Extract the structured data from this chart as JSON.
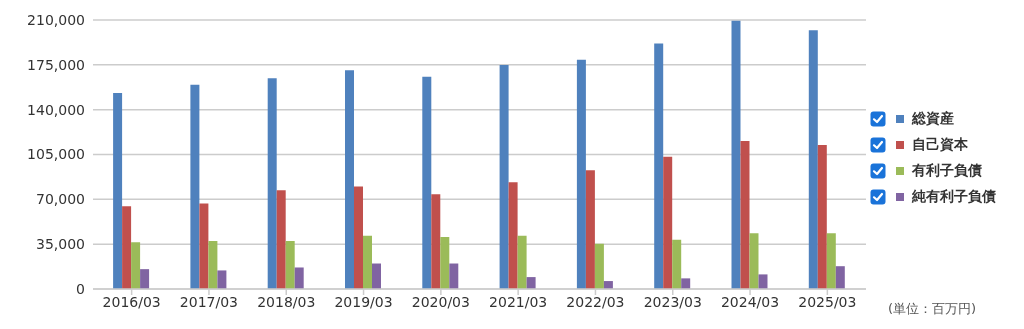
{
  "chart_data": {
    "type": "bar",
    "categories": [
      "2016/03",
      "2017/03",
      "2018/03",
      "2019/03",
      "2020/03",
      "2021/03",
      "2022/03",
      "2023/03",
      "2024/03",
      "2025/03"
    ],
    "series": [
      {
        "name": "総資産",
        "color": "#4f81bd",
        "values": [
          153000,
          159400,
          164600,
          170800,
          165600,
          174900,
          179000,
          191700,
          209500,
          202000
        ]
      },
      {
        "name": "自己資本",
        "color": "#c0504d",
        "values": [
          64600,
          66700,
          77000,
          80100,
          73900,
          83400,
          92700,
          103300,
          115500,
          112400
        ]
      },
      {
        "name": "有利子負債",
        "color": "#9bbb59",
        "values": [
          36400,
          37500,
          37500,
          41600,
          40500,
          41600,
          35400,
          38500,
          43600,
          43600
        ]
      },
      {
        "name": "純有利子負債",
        "color": "#8064a2",
        "values": [
          15500,
          14500,
          16800,
          19900,
          19900,
          9300,
          6200,
          8300,
          11400,
          17800
        ]
      }
    ],
    "ylim": [
      0,
      210000
    ],
    "yticks": [
      0,
      {
        "value": 35000,
        "label": "35,000"
      },
      {
        "value": 70000,
        "label": "70,000"
      },
      {
        "value": 105000,
        "label": "105,000"
      },
      {
        "value": 140000,
        "label": "140,000"
      },
      {
        "value": 175000,
        "label": "175,000"
      },
      {
        "value": 210000,
        "label": "210,000"
      }
    ],
    "grid": "y",
    "legend": "right",
    "annotations": [
      "(単位：百万円)"
    ]
  }
}
